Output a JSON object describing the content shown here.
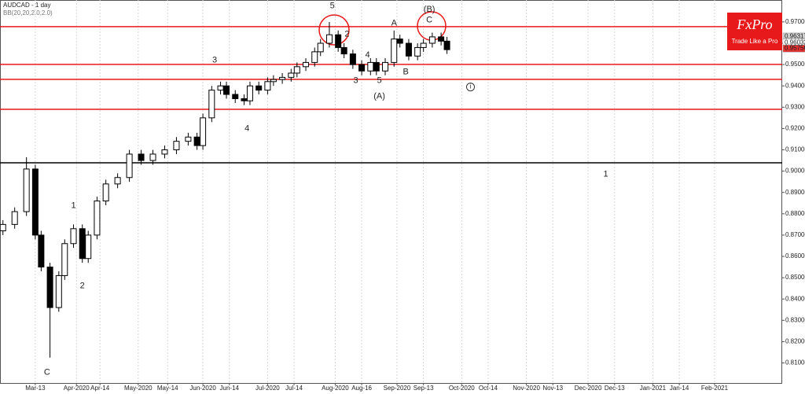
{
  "chart_data": {
    "type": "candlestick",
    "title": "AUDCAD - 1 day",
    "subtitle": "BB(20,20,2.0,2.0)",
    "logo": {
      "name": "FxPro",
      "tagline": "Trade Like a Pro"
    },
    "x": [
      1,
      5,
      9,
      12,
      14,
      17,
      20,
      22,
      25,
      28,
      30,
      33,
      36,
      40,
      44,
      48,
      52,
      56,
      60,
      64,
      67,
      69,
      72,
      75,
      77,
      80,
      83,
      85,
      88,
      91,
      93,
      96,
      99,
      101,
      104,
      107,
      109,
      112,
      115,
      117,
      120,
      123,
      126,
      128,
      131,
      134,
      136,
      139,
      142,
      144,
      147,
      150,
      152
    ],
    "open": [
      0.872,
      0.875,
      0.881,
      0.901,
      0.87,
      0.855,
      0.836,
      0.851,
      0.866,
      0.873,
      0.859,
      0.87,
      0.886,
      0.894,
      0.897,
      0.908,
      0.905,
      0.908,
      0.91,
      0.914,
      0.916,
      0.912,
      0.925,
      0.938,
      0.94,
      0.936,
      0.934,
      0.933,
      0.94,
      0.938,
      0.942,
      0.943,
      0.944,
      0.946,
      0.949,
      0.951,
      0.956,
      0.96,
      0.964,
      0.958,
      0.955,
      0.95,
      0.947,
      0.951,
      0.947,
      0.951,
      0.962,
      0.96,
      0.954,
      0.958,
      0.96,
      0.963,
      0.961
    ],
    "high": [
      0.877,
      0.883,
      0.9065,
      0.903,
      0.872,
      0.857,
      0.853,
      0.868,
      0.875,
      0.875,
      0.872,
      0.888,
      0.896,
      0.899,
      0.91,
      0.91,
      0.91,
      0.912,
      0.916,
      0.918,
      0.918,
      0.927,
      0.94,
      0.942,
      0.942,
      0.938,
      0.936,
      0.942,
      0.942,
      0.944,
      0.945,
      0.946,
      0.948,
      0.951,
      0.953,
      0.958,
      0.962,
      0.97,
      0.966,
      0.96,
      0.957,
      0.952,
      0.953,
      0.953,
      0.953,
      0.966,
      0.964,
      0.962,
      0.96,
      0.962,
      0.965,
      0.965,
      0.963
    ],
    "low": [
      0.87,
      0.873,
      0.879,
      0.868,
      0.853,
      0.8125,
      0.834,
      0.849,
      0.864,
      0.857,
      0.857,
      0.868,
      0.884,
      0.892,
      0.895,
      0.903,
      0.903,
      0.906,
      0.908,
      0.912,
      0.91,
      0.91,
      0.923,
      0.936,
      0.934,
      0.932,
      0.931,
      0.931,
      0.936,
      0.936,
      0.94,
      0.941,
      0.942,
      0.944,
      0.947,
      0.949,
      0.954,
      0.958,
      0.956,
      0.953,
      0.948,
      0.945,
      0.945,
      0.945,
      0.945,
      0.949,
      0.958,
      0.952,
      0.952,
      0.956,
      0.958,
      0.959,
      0.955
    ],
    "close": [
      0.875,
      0.881,
      0.901,
      0.87,
      0.855,
      0.836,
      0.851,
      0.866,
      0.873,
      0.859,
      0.87,
      0.886,
      0.894,
      0.897,
      0.908,
      0.905,
      0.908,
      0.91,
      0.914,
      0.916,
      0.912,
      0.925,
      0.938,
      0.94,
      0.936,
      0.934,
      0.933,
      0.94,
      0.938,
      0.942,
      0.943,
      0.944,
      0.946,
      0.949,
      0.951,
      0.956,
      0.96,
      0.964,
      0.958,
      0.955,
      0.95,
      0.947,
      0.951,
      0.947,
      0.951,
      0.962,
      0.96,
      0.954,
      0.958,
      0.96,
      0.963,
      0.961,
      0.957
    ],
    "xlim": [
      0,
      266
    ],
    "xticks": [
      {
        "value": 12,
        "label": "Mar-13"
      },
      {
        "value": 26,
        "label": "Apr-2020"
      },
      {
        "value": 34,
        "label": "Apr-14"
      },
      {
        "value": 47,
        "label": "May-2020"
      },
      {
        "value": 57,
        "label": "May-14"
      },
      {
        "value": 69,
        "label": "Jun-2020"
      },
      {
        "value": 78,
        "label": "Jun-14"
      },
      {
        "value": 91,
        "label": "Jul-2020"
      },
      {
        "value": 100,
        "label": "Jul-14"
      },
      {
        "value": 114,
        "label": "Aug-2020"
      },
      {
        "value": 123,
        "label": "Aug-16"
      },
      {
        "value": 135,
        "label": "Sep-2020"
      },
      {
        "value": 144,
        "label": "Sep-13"
      },
      {
        "value": 157,
        "label": "Oct-2020"
      },
      {
        "value": 166,
        "label": "Oct-14"
      },
      {
        "value": 179,
        "label": "Nov-2020"
      },
      {
        "value": 188,
        "label": "Nov-13"
      },
      {
        "value": 200,
        "label": "Dec-2020"
      },
      {
        "value": 209,
        "label": "Dec-13"
      },
      {
        "value": 222,
        "label": "Jan-2021"
      },
      {
        "value": 231,
        "label": "Jan-14"
      },
      {
        "value": 243,
        "label": "Feb-2021"
      }
    ],
    "ylim": [
      0.8006,
      0.9803
    ],
    "yticks": [
      {
        "value": 0.81,
        "label": "0.81000"
      },
      {
        "value": 0.82,
        "label": "0.82000"
      },
      {
        "value": 0.83,
        "label": "0.83000"
      },
      {
        "value": 0.84,
        "label": "0.84000"
      },
      {
        "value": 0.85,
        "label": "0.85000"
      },
      {
        "value": 0.86,
        "label": "0.86000"
      },
      {
        "value": 0.87,
        "label": "0.87000"
      },
      {
        "value": 0.88,
        "label": "0.88000"
      },
      {
        "value": 0.89,
        "label": "0.89000"
      },
      {
        "value": 0.9,
        "label": "0.90000"
      },
      {
        "value": 0.91,
        "label": "0.91000"
      },
      {
        "value": 0.92,
        "label": "0.92000"
      },
      {
        "value": 0.93,
        "label": "0.93000"
      },
      {
        "value": 0.94,
        "label": "0.94000"
      },
      {
        "value": 0.95,
        "label": "0.95000"
      },
      {
        "value": 0.96,
        "label": "0.96000"
      },
      {
        "value": 0.97,
        "label": "0.97000"
      }
    ],
    "price_tags": [
      {
        "value": 0.96317,
        "label": "0.96317",
        "color": "#cfcfcf"
      },
      {
        "value": 0.96032,
        "label": "0.96032",
        "color": "#ffffff"
      },
      {
        "value": 0.95756,
        "label": "0.95756",
        "color": "#e03030"
      }
    ],
    "levels": [
      {
        "value": 0.9678,
        "color": "#e8191b"
      },
      {
        "value": 0.9501,
        "color": "#e8191b"
      },
      {
        "value": 0.9431,
        "color": "#e8191b"
      },
      {
        "value": 0.929,
        "color": "#e8191b"
      },
      {
        "value": 0.9039,
        "color": "#000000"
      }
    ],
    "annotations": [
      {
        "text": "5",
        "x": 113,
        "y": 0.9775
      },
      {
        "text": "2",
        "x": 118,
        "y": 0.9642
      },
      {
        "text": "4",
        "x": 125,
        "y": 0.9545
      },
      {
        "text": "3",
        "x": 121,
        "y": 0.9424
      },
      {
        "text": "5",
        "x": 129,
        "y": 0.9424
      },
      {
        "text": "(A)",
        "x": 129,
        "y": 0.935
      },
      {
        "text": "A",
        "x": 134,
        "y": 0.9694
      },
      {
        "text": "B",
        "x": 138,
        "y": 0.9465
      },
      {
        "text": "(B)",
        "x": 146,
        "y": 0.9758
      },
      {
        "text": "C",
        "x": 146,
        "y": 0.9708
      },
      {
        "text": "3",
        "x": 73,
        "y": 0.9521
      },
      {
        "text": "4",
        "x": 84,
        "y": 0.9199
      },
      {
        "text": "1",
        "x": 25,
        "y": 0.8838
      },
      {
        "text": "2",
        "x": 28,
        "y": 0.8462
      },
      {
        "text": "C",
        "x": 16,
        "y": 0.8056
      },
      {
        "text": "1",
        "x": 206,
        "y": 0.8985
      },
      {
        "text": "i",
        "x": 160,
        "y": 0.9395,
        "circled": true
      }
    ]
  }
}
